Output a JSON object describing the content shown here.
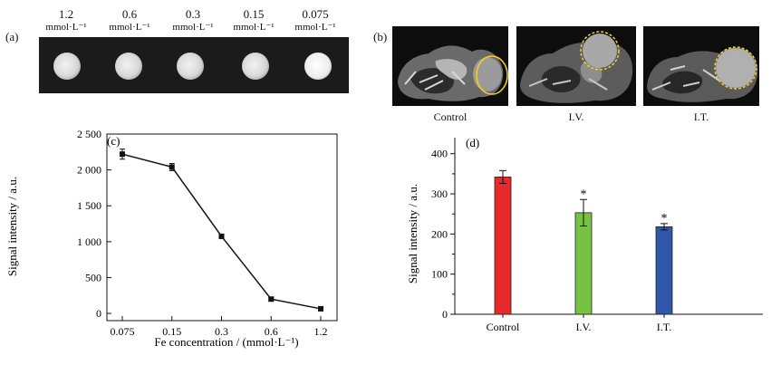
{
  "panel_a": {
    "label": "(a)",
    "concentrations": [
      {
        "value": "1.2",
        "unit": "mmol·L⁻¹"
      },
      {
        "value": "0.6",
        "unit": "mmol·L⁻¹"
      },
      {
        "value": "0.3",
        "unit": "mmol·L⁻¹"
      },
      {
        "value": "0.15",
        "unit": "mmol·L⁻¹"
      },
      {
        "value": "0.075",
        "unit": "mmol·L⁻¹"
      }
    ]
  },
  "panel_b": {
    "label": "(b)",
    "captions": [
      "Control",
      "I.V.",
      "I.T."
    ]
  },
  "colors": {
    "control_bar": "#e8292b",
    "iv_bar": "#77c143",
    "it_bar": "#2f58a8",
    "roi_circle": "#f2d21e"
  },
  "chart_data": [
    {
      "type": "line",
      "panel_label": "(c)",
      "xlabel": "Fe concentration / (mmol·L⁻¹)",
      "ylabel": "Signal intensity / a.u.",
      "categories": [
        "0.075",
        "0.15",
        "0.3",
        "0.6",
        "1.2"
      ],
      "values": [
        2220,
        2040,
        1075,
        200,
        65
      ],
      "errors": [
        70,
        50,
        30,
        25,
        20
      ],
      "ylim": [
        -100,
        2500
      ],
      "yticks": [
        0,
        500,
        1000,
        1500,
        2000,
        2500
      ],
      "ytick_labels": [
        "0",
        "500",
        "1 000",
        "1 500",
        "2 000",
        "2 500"
      ]
    },
    {
      "type": "bar",
      "panel_label": "(d)",
      "xlabel": "",
      "ylabel": "Signal intensity / a.u.",
      "categories": [
        "Control",
        "I.V.",
        "I.T."
      ],
      "values": [
        342,
        253,
        218
      ],
      "errors": [
        16,
        33,
        8
      ],
      "significance": [
        "",
        "*",
        "*"
      ],
      "ylim": [
        0,
        440
      ],
      "yticks": [
        0,
        100,
        200,
        300,
        400
      ],
      "ytick_labels": [
        "0",
        "100",
        "200",
        "300",
        "400"
      ]
    }
  ]
}
